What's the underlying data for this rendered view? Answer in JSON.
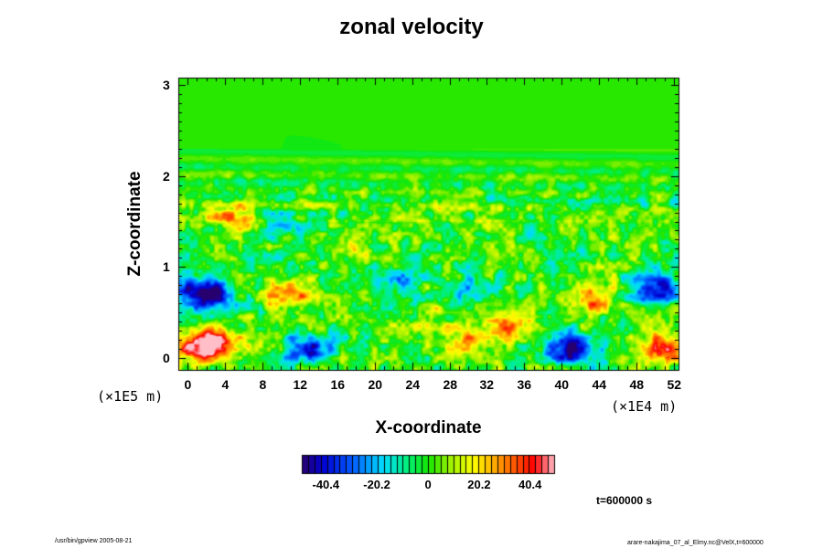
{
  "chart_data": {
    "type": "heatmap",
    "title": "zonal velocity",
    "xlabel": "X-coordinate",
    "ylabel": "Z-coordinate",
    "x_unit": "(×1E4 m)",
    "y_unit": "(×1E5 m)",
    "xlim": [
      -1,
      52.5
    ],
    "ylim": [
      -0.13,
      3.08
    ],
    "x_ticks": [
      "0",
      "4",
      "8",
      "12",
      "16",
      "20",
      "24",
      "28",
      "32",
      "36",
      "40",
      "44",
      "48",
      "52"
    ],
    "y_ticks": [
      "0",
      "1",
      "2",
      "3"
    ],
    "colorbar": {
      "min": -50,
      "max": 50,
      "levels": 40,
      "tick_labels": [
        "-40.4",
        "-20.2",
        "0",
        "20.2",
        "40.4"
      ],
      "tick_values": [
        -40.4,
        -20.2,
        0,
        20.2,
        40.4
      ]
    },
    "features": [
      {
        "x": 1,
        "z": 0.1,
        "value": 45
      },
      {
        "x": 3,
        "z": 0.2,
        "value": 32
      },
      {
        "x": 1,
        "z": 0.7,
        "value": -40
      },
      {
        "x": 3,
        "z": 0.72,
        "value": -30
      },
      {
        "x": 11,
        "z": 0.7,
        "value": 30
      },
      {
        "x": 13,
        "z": 0.1,
        "value": -40
      },
      {
        "x": 5,
        "z": 1.55,
        "value": 28
      },
      {
        "x": 9,
        "z": 1.5,
        "value": -16
      },
      {
        "x": 22,
        "z": 0.85,
        "value": -20
      },
      {
        "x": 30,
        "z": 0.15,
        "value": 28
      },
      {
        "x": 34,
        "z": 0.35,
        "value": 28
      },
      {
        "x": 41,
        "z": 0.1,
        "value": -45
      },
      {
        "x": 43,
        "z": 0.65,
        "value": 33
      },
      {
        "x": 50,
        "z": 0.75,
        "value": -42
      },
      {
        "x": 51,
        "z": 0.1,
        "value": 40
      },
      {
        "x": 30,
        "z": 0.75,
        "value": -18
      },
      {
        "x": 26,
        "z": 0.45,
        "value": 12
      },
      {
        "x": 38,
        "z": 1.25,
        "value": -10
      },
      {
        "x": 18,
        "z": 1.2,
        "value": 10
      },
      {
        "x": 25,
        "z": 1.55,
        "value": 8
      }
    ]
  },
  "annotations": {
    "time": "t=600000 s",
    "footer_left": "/usr/bin/gpview 2005-08-21",
    "footer_right": "arare-nakajima_07_al_Elmy.nc@VelX,t=600000"
  }
}
